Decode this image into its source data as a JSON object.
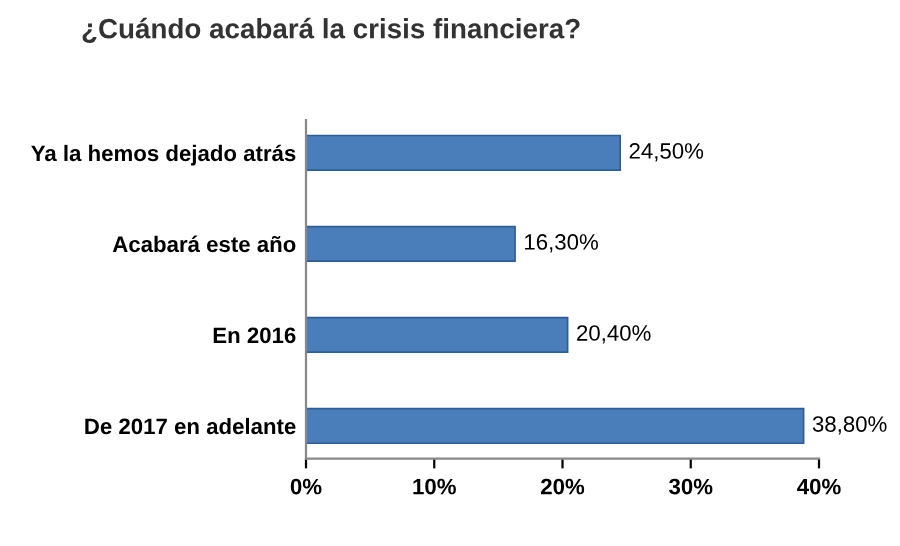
{
  "chart_data": {
    "type": "bar",
    "orientation": "horizontal",
    "title": "¿Cuándo acabará la crisis financiera?",
    "categories": [
      "Ya la hemos dejado atrás",
      "Acabará este año",
      "En 2016",
      "De 2017 en adelante"
    ],
    "values": [
      24.5,
      16.3,
      20.4,
      38.8
    ],
    "value_labels": [
      "24,50%",
      "16,30%",
      "20,40%",
      "38,80%"
    ],
    "color": "#4a7ebb",
    "xlim": [
      0,
      40
    ],
    "xticks": [
      {
        "value": 0,
        "label": "0%"
      },
      {
        "value": 10,
        "label": "10%"
      },
      {
        "value": 20,
        "label": "20%"
      },
      {
        "value": 30,
        "label": "30%"
      },
      {
        "value": 40,
        "label": "40%"
      }
    ],
    "grid": false,
    "legend": false
  }
}
